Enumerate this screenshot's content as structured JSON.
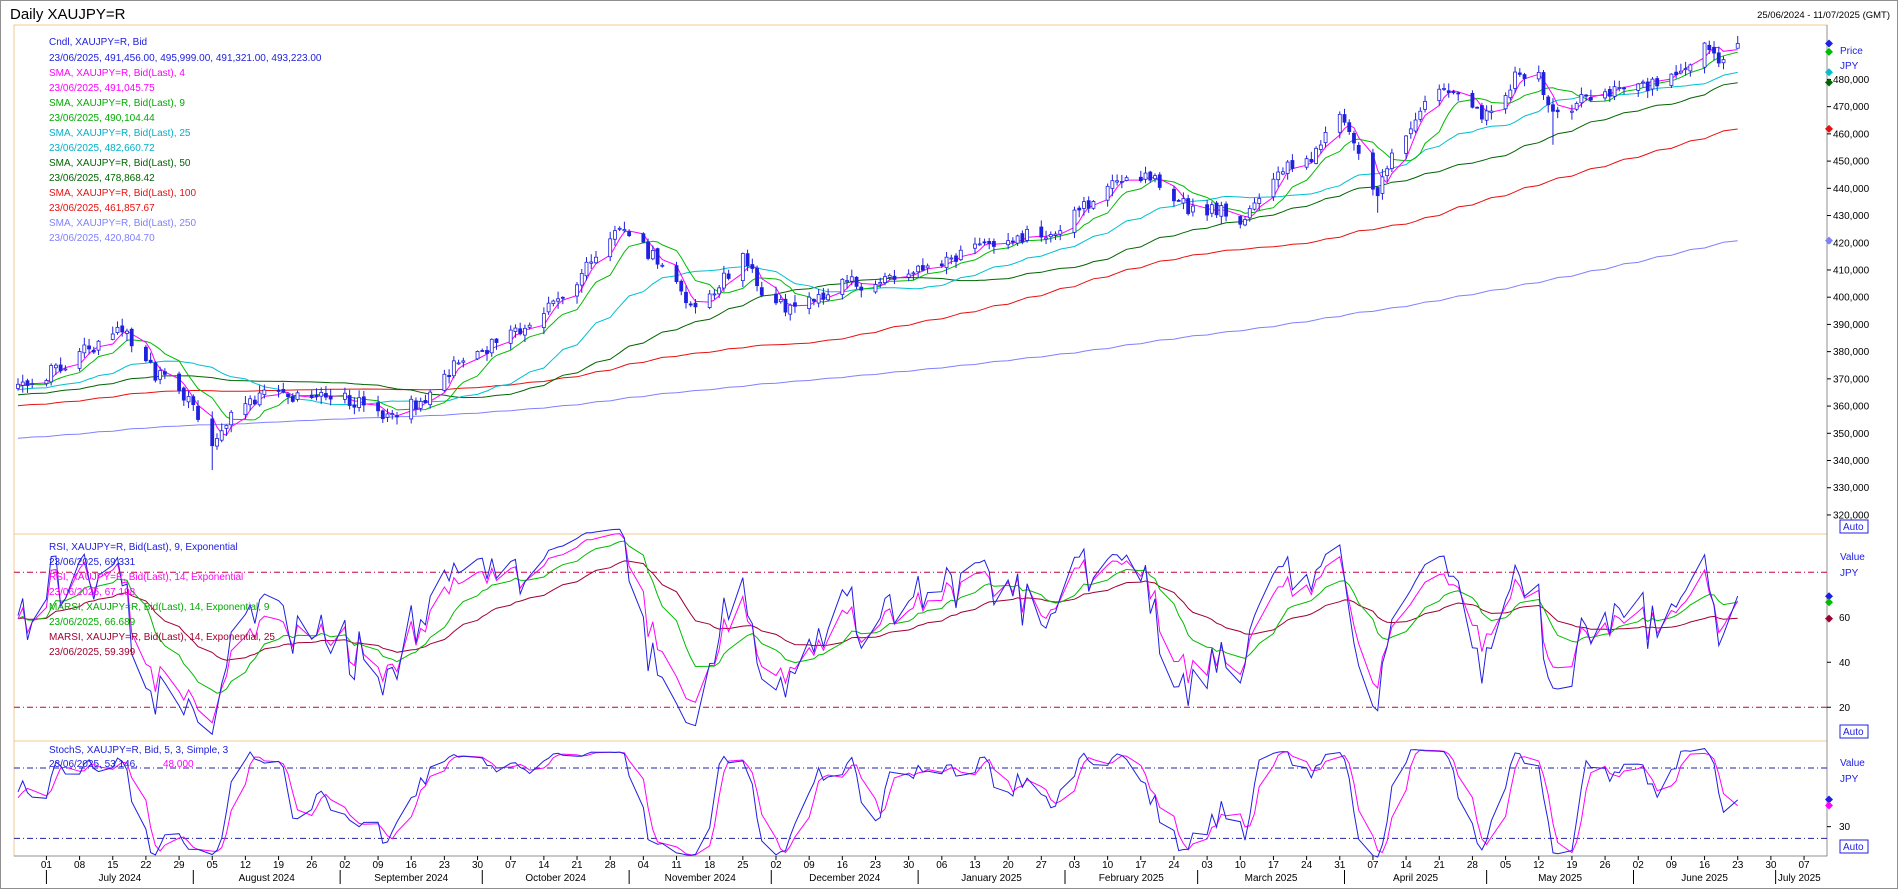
{
  "header": {
    "title": "Daily XAUJPY=R",
    "date_range": "25/06/2024 - 11/07/2025 (GMT)"
  },
  "colors": {
    "candle": "#2020e0",
    "sma4": "#ff00ff",
    "sma9": "#00bb00",
    "sma25": "#00c0d0",
    "sma50": "#006400",
    "sma100": "#e81010",
    "sma250": "#8080ff",
    "rsi9": "#2020e0",
    "rsi14": "#ff00ff",
    "marsi9": "#00bb00",
    "marsi25": "#a00030",
    "stoch_k": "#2020e0",
    "stoch_d": "#ff00ff",
    "panel_border": "#f0c890",
    "ref_line": "#c00040"
  },
  "main_panel": {
    "legend": [
      {
        "label": "Cndl, XAUJPY=R, Bid",
        "value": "23/06/2025, 491,456.00, 495,999.00, 491,321.00, 493,223.00",
        "color": "#2020e0"
      },
      {
        "label": "SMA, XAUJPY=R, Bid(Last), 4",
        "value": "23/06/2025, 491,045.75",
        "color": "#ff00ff"
      },
      {
        "label": "SMA, XAUJPY=R, Bid(Last), 9",
        "value": "23/06/2025, 490,104.44",
        "color": "#00bb00"
      },
      {
        "label": "SMA, XAUJPY=R, Bid(Last), 25",
        "value": "23/06/2025, 482,660.72",
        "color": "#00c0d0"
      },
      {
        "label": "SMA, XAUJPY=R, Bid(Last), 50",
        "value": "23/06/2025, 478,868.42",
        "color": "#006400"
      },
      {
        "label": "SMA, XAUJPY=R, Bid(Last), 100",
        "value": "23/06/2025, 461,857.67",
        "color": "#e81010"
      },
      {
        "label": "SMA, XAUJPY=R, Bid(Last), 250",
        "value": "23/06/2025, 420,804.70",
        "color": "#8080ff"
      }
    ],
    "axis_title": "Price",
    "axis_unit": "JPY",
    "auto_label": "Auto"
  },
  "rsi_panel": {
    "legend": [
      {
        "label": "RSI, XAUJPY=R, Bid(Last), 9, Exponential",
        "value": "23/06/2025, 69.331",
        "color": "#2020e0"
      },
      {
        "label": "RSI, XAUJPY=R, Bid(Last), 14, Exponential",
        "value": "23/06/2025, 67.198",
        "color": "#ff00ff"
      },
      {
        "label": "MARSI, XAUJPY=R, Bid(Last), 14, Exponential, 9",
        "value": "23/06/2025, 66.689",
        "color": "#00bb00"
      },
      {
        "label": "MARSI, XAUJPY=R, Bid(Last), 14, Exponential, 25",
        "value": "23/06/2025, 59.399",
        "color": "#a00030"
      }
    ],
    "axis_title": "Value",
    "axis_unit": "JPY",
    "auto_label": "Auto"
  },
  "stoch_panel": {
    "legend": [
      {
        "label": "StochS, XAUJPY=R, Bid, 5, 3, Simple, 3",
        "value": "23/06/2025, 53.146,",
        "value2": "48.000",
        "color": "#2020e0"
      }
    ],
    "axis_title": "Value",
    "axis_unit": "JPY",
    "auto_label": "Auto"
  },
  "chart_data": {
    "type": "candlestick",
    "instrument": "XAUJPY=R",
    "y_ticks": [
      320000,
      330000,
      340000,
      350000,
      360000,
      370000,
      380000,
      390000,
      400000,
      410000,
      420000,
      430000,
      440000,
      450000,
      460000,
      470000,
      480000
    ],
    "y_tick_labels": [
      "320,000",
      "330,000",
      "340,000",
      "350,000",
      "360,000",
      "370,000",
      "380,000",
      "390,000",
      "400,000",
      "410,000",
      "420,000",
      "430,000",
      "440,000",
      "450,000",
      "460,000",
      "470,000",
      "480,000"
    ],
    "ylim": [
      313000,
      500000
    ],
    "rsi_ticks": [
      20,
      40,
      60
    ],
    "rsi_ylim": [
      5,
      97
    ],
    "rsi_ref_lines": [
      20,
      80
    ],
    "stoch_ticks": [
      30
    ],
    "stoch_ylim": [
      5,
      103
    ],
    "stoch_ref_lines": [
      20,
      80
    ],
    "x_day_ticks": [
      "01",
      "08",
      "15",
      "22",
      "29",
      "05",
      "12",
      "19",
      "26",
      "02",
      "09",
      "16",
      "23",
      "30",
      "07",
      "14",
      "21",
      "28",
      "04",
      "11",
      "18",
      "25",
      "02",
      "09",
      "16",
      "23",
      "30",
      "06",
      "13",
      "20",
      "27",
      "03",
      "10",
      "17",
      "24",
      "03",
      "10",
      "17",
      "24",
      "31",
      "07",
      "14",
      "21",
      "28",
      "05",
      "12",
      "19",
      "26",
      "02",
      "09",
      "16",
      "23",
      "30",
      "07"
    ],
    "x_months": [
      "July 2024",
      "August 2024",
      "September 2024",
      "October 2024",
      "November 2024",
      "December 2024",
      "January 2025",
      "February 2025",
      "March 2025",
      "April 2025",
      "May 2025",
      "June 2025",
      "July 2025"
    ],
    "close_anchors": [
      [
        "2024-06-25",
        368000
      ],
      [
        "2024-07-03",
        373000
      ],
      [
        "2024-07-10",
        381000
      ],
      [
        "2024-07-17",
        389000
      ],
      [
        "2024-07-24",
        372000
      ],
      [
        "2024-07-31",
        362000
      ],
      [
        "2024-08-05",
        343000
      ],
      [
        "2024-08-09",
        356000
      ],
      [
        "2024-08-16",
        366000
      ],
      [
        "2024-08-22",
        364000
      ],
      [
        "2024-08-30",
        365000
      ],
      [
        "2024-09-06",
        360000
      ],
      [
        "2024-09-11",
        357000
      ],
      [
        "2024-09-18",
        362000
      ],
      [
        "2024-09-24",
        373000
      ],
      [
        "2024-09-30",
        380000
      ],
      [
        "2024-10-07",
        386000
      ],
      [
        "2024-10-11",
        390000
      ],
      [
        "2024-10-21",
        407000
      ],
      [
        "2024-10-30",
        426000
      ],
      [
        "2024-11-04",
        418000
      ],
      [
        "2024-11-08",
        412000
      ],
      [
        "2024-11-14",
        396000
      ],
      [
        "2024-11-19",
        402000
      ],
      [
        "2024-11-25",
        416000
      ],
      [
        "2024-11-29",
        400000
      ],
      [
        "2024-12-05",
        396000
      ],
      [
        "2024-12-10",
        398000
      ],
      [
        "2024-12-16",
        407000
      ],
      [
        "2024-12-23",
        403000
      ],
      [
        "2024-12-30",
        410000
      ],
      [
        "2025-01-06",
        414000
      ],
      [
        "2025-01-14",
        418000
      ],
      [
        "2025-01-21",
        422000
      ],
      [
        "2025-01-28",
        423000
      ],
      [
        "2025-02-03",
        430000
      ],
      [
        "2025-02-10",
        440000
      ],
      [
        "2025-02-14",
        446000
      ],
      [
        "2025-02-21",
        442000
      ],
      [
        "2025-02-28",
        431000
      ],
      [
        "2025-03-07",
        432000
      ],
      [
        "2025-03-11",
        428000
      ],
      [
        "2025-03-18",
        446000
      ],
      [
        "2025-03-25",
        452000
      ],
      [
        "2025-03-31",
        466000
      ],
      [
        "2025-04-03",
        455000
      ],
      [
        "2025-04-08",
        438000
      ],
      [
        "2025-04-11",
        452000
      ],
      [
        "2025-04-17",
        468000
      ],
      [
        "2025-04-22",
        478000
      ],
      [
        "2025-04-28",
        472000
      ],
      [
        "2025-05-01",
        466000
      ],
      [
        "2025-05-07",
        481000
      ],
      [
        "2025-05-12",
        480000
      ],
      [
        "2025-05-15",
        466000
      ],
      [
        "2025-05-21",
        472000
      ],
      [
        "2025-05-28",
        476000
      ],
      [
        "2025-06-04",
        478000
      ],
      [
        "2025-06-10",
        480000
      ],
      [
        "2025-06-16",
        492000
      ],
      [
        "2025-06-19",
        488000
      ],
      [
        "2025-06-23",
        493223
      ]
    ],
    "last_candle": {
      "date": "2025-06-23",
      "open": 491456,
      "high": 495999,
      "low": 491321,
      "close": 493223
    },
    "sma_last_values": {
      "sma4": 491045.75,
      "sma9": 490104.44,
      "sma25": 482660.72,
      "sma50": 478868.42,
      "sma100": 461857.67,
      "sma250": 420804.7
    },
    "rsi_last_values": {
      "rsi9": 69.331,
      "rsi14": 67.198,
      "marsi9": 66.689,
      "marsi25": 59.399
    },
    "stoch_last_values": {
      "k": 53.146,
      "d": 48.0
    }
  }
}
